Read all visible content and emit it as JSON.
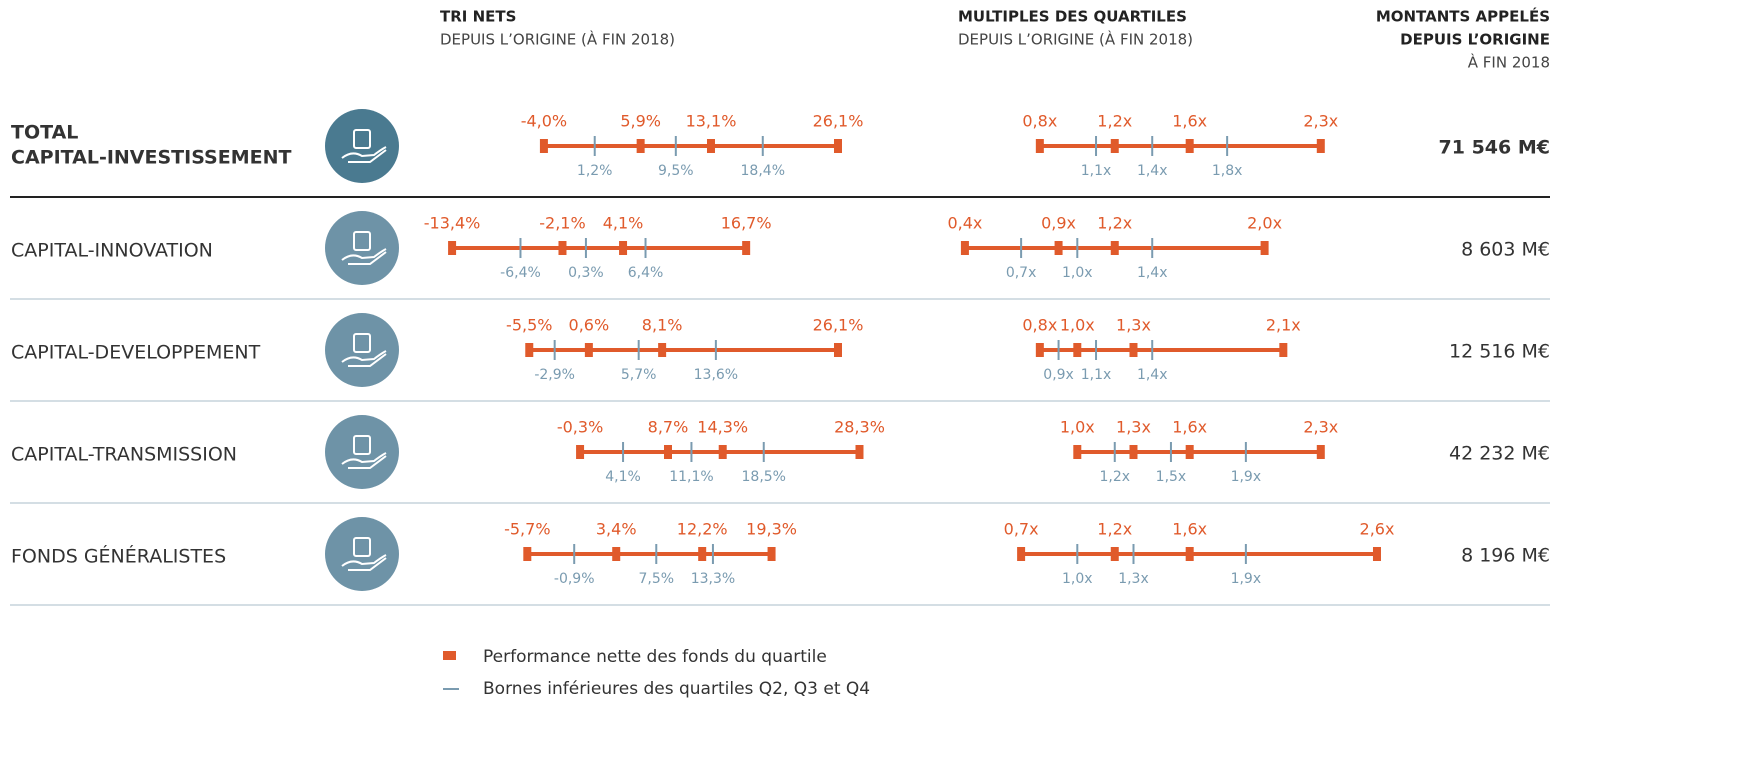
{
  "header": {
    "tri_title": "TRI NETS",
    "tri_subtitle": "DEPUIS L’ORIGINE (À FIN 2018)",
    "multiples_title": "MULTIPLES DES QUARTILES",
    "multiples_subtitle": "DEPUIS L’ORIGINE (À FIN 2018)",
    "amount_title": [
      "MONTANTS APPELÉS",
      "DEPUIS L’ORIGINE"
    ],
    "amount_subtitle": "À FIN 2018"
  },
  "rows": [
    {
      "label": [
        "TOTAL",
        "CAPITAL-INVESTISSEMENT"
      ],
      "tri": {
        "performance": [
          -4.0,
          5.9,
          13.1,
          26.1
        ],
        "performance_labels": [
          "-4,0%",
          "5,9%",
          "13,1%",
          "26,1%"
        ],
        "bounds": [
          1.2,
          9.5,
          18.4
        ],
        "bounds_labels": [
          "1,2%",
          "9,5%",
          "18,4%"
        ]
      },
      "multiples": {
        "performance": [
          0.8,
          1.2,
          1.6,
          2.3
        ],
        "performance_labels": [
          "0,8x",
          "1,2x",
          "1,6x",
          "2,3x"
        ],
        "bounds": [
          1.1,
          1.4,
          1.8
        ],
        "bounds_labels": [
          "1,1x",
          "1,4x",
          "1,8x"
        ]
      },
      "amount": "71 546 M€"
    },
    {
      "label": [
        "CAPITAL-INNOVATION"
      ],
      "tri": {
        "performance": [
          -13.4,
          -2.1,
          4.1,
          16.7
        ],
        "performance_labels": [
          "-13,4%",
          "-2,1%",
          "4,1%",
          "16,7%"
        ],
        "bounds": [
          -6.4,
          0.3,
          6.4
        ],
        "bounds_labels": [
          "-6,4%",
          "0,3%",
          "6,4%"
        ]
      },
      "multiples": {
        "performance": [
          0.4,
          0.9,
          1.2,
          2.0
        ],
        "performance_labels": [
          "0,4x",
          "0,9x",
          "1,2x",
          "2,0x"
        ],
        "bounds": [
          0.7,
          1.0,
          1.4
        ],
        "bounds_labels": [
          "0,7x",
          "1,0x",
          "1,4x"
        ]
      },
      "amount": "8 603  M€"
    },
    {
      "label": [
        "CAPITAL-DEVELOPPEMENT"
      ],
      "tri": {
        "performance": [
          -5.5,
          0.6,
          8.1,
          26.1
        ],
        "performance_labels": [
          "-5,5%",
          "0,6%",
          "8,1%",
          "26,1%"
        ],
        "bounds": [
          -2.9,
          5.7,
          13.6
        ],
        "bounds_labels": [
          "-2,9%",
          "5,7%",
          "13,6%"
        ]
      },
      "multiples": {
        "performance": [
          0.8,
          1.0,
          1.3,
          2.1
        ],
        "performance_labels": [
          "0,8x",
          "1,0x",
          "1,3x",
          "2,1x"
        ],
        "bounds": [
          0.9,
          1.1,
          1.4
        ],
        "bounds_labels": [
          "0,9x",
          "1,1x",
          "1,4x"
        ]
      },
      "amount": "12 516 M€"
    },
    {
      "label": [
        "CAPITAL-TRANSMISSION"
      ],
      "tri": {
        "performance": [
          -0.3,
          8.7,
          14.3,
          28.3
        ],
        "performance_labels": [
          "-0,3%",
          "8,7%",
          "14,3%",
          "28,3%"
        ],
        "bounds": [
          4.1,
          11.1,
          18.5
        ],
        "bounds_labels": [
          "4,1%",
          "11,1%",
          "18,5%"
        ]
      },
      "multiples": {
        "performance": [
          1.0,
          1.3,
          1.6,
          2.3
        ],
        "performance_labels": [
          "1,0x",
          "1,3x",
          "1,6x",
          "2,3x"
        ],
        "bounds": [
          1.2,
          1.5,
          1.9
        ],
        "bounds_labels": [
          "1,2x",
          "1,5x",
          "1,9x"
        ]
      },
      "amount": "42 232 M€"
    },
    {
      "label": [
        "FONDS GÉNÉRALISTES"
      ],
      "tri": {
        "performance": [
          -5.7,
          3.4,
          12.2,
          19.3
        ],
        "performance_labels": [
          "-5,7%",
          "3,4%",
          "12,2%",
          "19,3%"
        ],
        "bounds": [
          -0.9,
          7.5,
          13.3
        ],
        "bounds_labels": [
          "-0,9%",
          "7,5%",
          "13,3%"
        ]
      },
      "multiples": {
        "performance": [
          0.7,
          1.2,
          1.6,
          2.6
        ],
        "performance_labels": [
          "0,7x",
          "1,2x",
          "1,6x",
          "2,6x"
        ],
        "bounds": [
          1.0,
          1.3,
          1.9
        ],
        "bounds_labels": [
          "1,0x",
          "1,3x",
          "1,9x"
        ]
      },
      "amount": "8 196 M€"
    }
  ],
  "legend": {
    "performance": "Performance nette des fonds du quartile",
    "bounds": "Bornes inférieures des quartiles Q2, Q3 et Q4"
  }
}
